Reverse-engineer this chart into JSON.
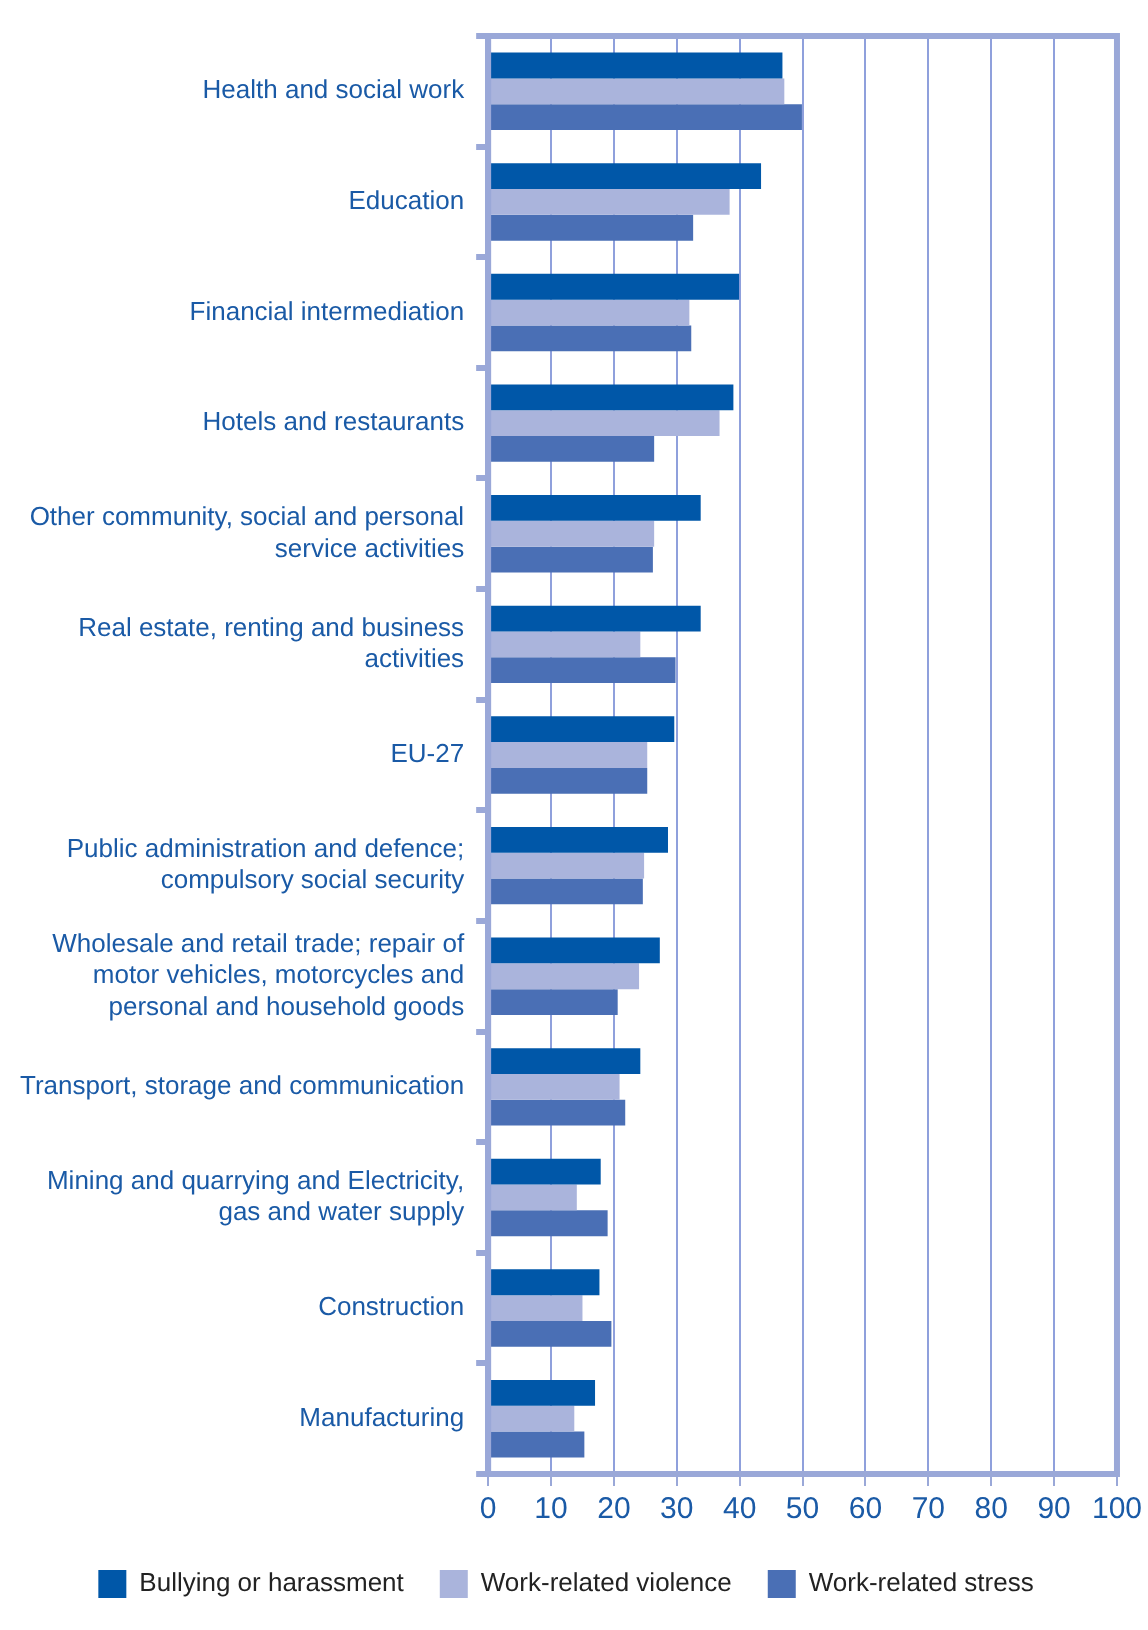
{
  "chart_data": {
    "type": "bar",
    "orientation": "horizontal",
    "categories": [
      "Health and social work",
      "Education",
      "Financial intermediation",
      "Hotels and restaurants",
      "Other community, social and personal service activities",
      "Real estate, renting and business activities",
      "EU-27",
      "Public administration and defence; compulsory social security",
      "Wholesale and retail trade; repair of motor vehicles, motorcycles and personal and household goods",
      "Transport, storage and communication",
      "Mining and quarrying and Electricity, gas and water supply",
      "Construction",
      "Manufacturing"
    ],
    "series": [
      {
        "name": "Bullying or harassment",
        "color": "#0057a8",
        "values": [
          46.8,
          43.4,
          39.9,
          39,
          33.8,
          33.8,
          29.6,
          28.6,
          27.3,
          24.2,
          17.9,
          17.7,
          17
        ]
      },
      {
        "name": "Work-related violence",
        "color": "#aab4dc",
        "values": [
          47.1,
          38.4,
          32,
          36.8,
          26.4,
          24.2,
          25.3,
          24.8,
          24,
          20.9,
          14.1,
          15,
          13.7
        ]
      },
      {
        "name": "Work-related stress",
        "color": "#4a6fb5",
        "values": [
          49.9,
          32.6,
          32.3,
          26.4,
          26.2,
          29.8,
          25.3,
          24.6,
          20.6,
          21.8,
          19,
          19.6,
          15.3
        ]
      }
    ],
    "xlim": [
      0,
      100
    ],
    "xticks": [
      0,
      10,
      20,
      30,
      40,
      50,
      60,
      70,
      80,
      90,
      100
    ],
    "grid": "x",
    "legend": "bottom"
  }
}
